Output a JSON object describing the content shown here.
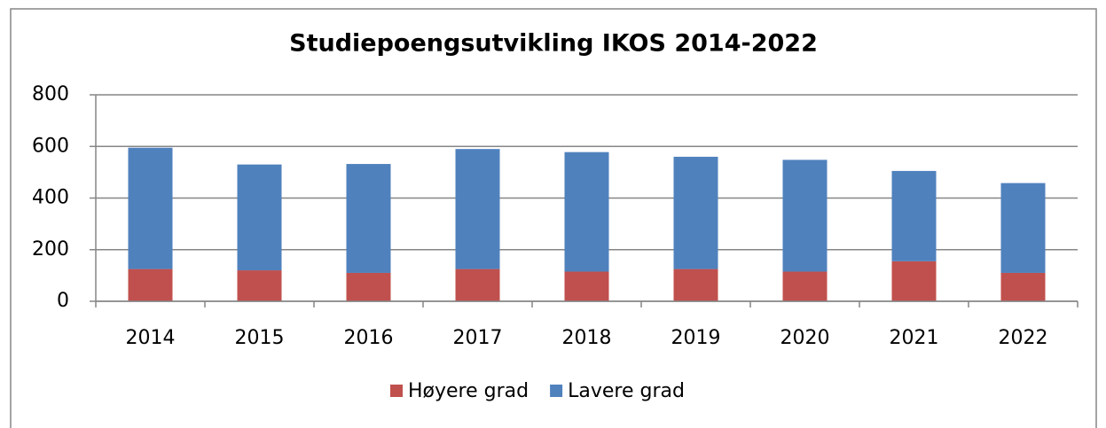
{
  "chart_data": {
    "type": "stacked_bar",
    "title": "Studiepoengsutvikling IKOS 2014-2022",
    "categories": [
      "2014",
      "2015",
      "2016",
      "2017",
      "2018",
      "2019",
      "2020",
      "2021",
      "2022"
    ],
    "series": [
      {
        "name": "Høyere grad",
        "color": "#c0504d",
        "values": [
          125,
          120,
          110,
          125,
          115,
          125,
          115,
          155,
          110
        ]
      },
      {
        "name": "Lavere grad",
        "color": "#4f81bd",
        "values": [
          470,
          410,
          422,
          465,
          463,
          435,
          433,
          350,
          348
        ]
      }
    ],
    "ylim": [
      0,
      800
    ],
    "yticks": [
      0,
      200,
      400,
      600,
      800
    ],
    "grid": true,
    "legend": "bottom"
  }
}
